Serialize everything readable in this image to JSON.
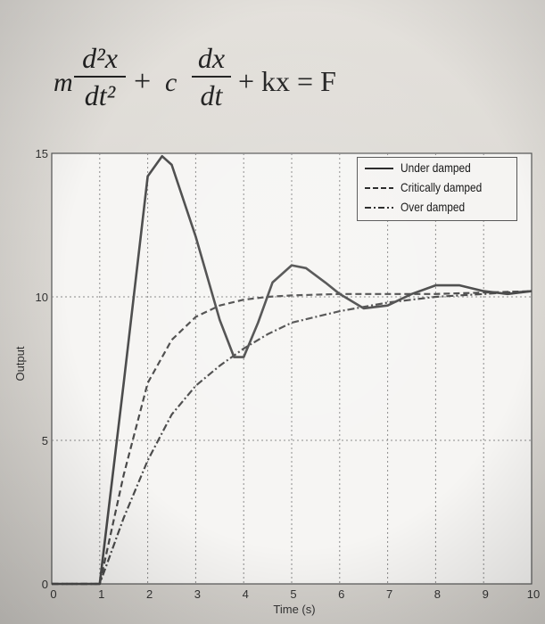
{
  "equation": {
    "m": "m",
    "frac1_num": "d²x",
    "frac1_den": "dt²",
    "plus1": "+",
    "c": "c",
    "frac2_num": "dx",
    "frac2_den": "dt",
    "rest": "+ kx = F"
  },
  "chart_data": {
    "type": "line",
    "title": "",
    "xlabel": "Time (s)",
    "ylabel": "Output",
    "xlim": [
      0,
      10
    ],
    "ylim": [
      0,
      15
    ],
    "x_ticks": [
      "0",
      "1",
      "2",
      "3",
      "4",
      "5",
      "6",
      "7",
      "8",
      "9",
      "10"
    ],
    "y_ticks": [
      "0",
      "5",
      "10",
      "15"
    ],
    "grid": true,
    "legend_position": "top-right",
    "series": [
      {
        "name": "Under damped",
        "style": "solid",
        "color": "#555555",
        "x": [
          0,
          1,
          1.5,
          2,
          2.3,
          2.5,
          3,
          3.5,
          3.8,
          4,
          4.3,
          4.6,
          5,
          5.3,
          5.7,
          6,
          6.5,
          7,
          7.5,
          8,
          8.5,
          9,
          9.5,
          10
        ],
        "y": [
          0,
          0,
          7,
          14.2,
          14.9,
          14.6,
          12.1,
          9.2,
          7.9,
          7.9,
          9.1,
          10.5,
          11.1,
          11.0,
          10.5,
          10.1,
          9.6,
          9.7,
          10.1,
          10.4,
          10.4,
          10.2,
          10.1,
          10.2
        ]
      },
      {
        "name": "Critically damped",
        "style": "dashed",
        "color": "#555555",
        "x": [
          0,
          1,
          1.5,
          2,
          2.5,
          3,
          3.5,
          4,
          4.5,
          5,
          6,
          7,
          8,
          9,
          10
        ],
        "y": [
          0,
          0,
          3.8,
          7.0,
          8.5,
          9.3,
          9.7,
          9.9,
          10.0,
          10.05,
          10.1,
          10.1,
          10.1,
          10.15,
          10.2
        ]
      },
      {
        "name": "Over damped",
        "style": "dashdot",
        "color": "#555555",
        "x": [
          0,
          1,
          1.5,
          2,
          2.5,
          3,
          3.5,
          4,
          4.5,
          5,
          5.5,
          6,
          7,
          8,
          9,
          10
        ],
        "y": [
          0,
          0,
          2.3,
          4.3,
          5.9,
          6.9,
          7.6,
          8.2,
          8.7,
          9.1,
          9.3,
          9.5,
          9.8,
          10.0,
          10.1,
          10.2
        ]
      }
    ]
  }
}
